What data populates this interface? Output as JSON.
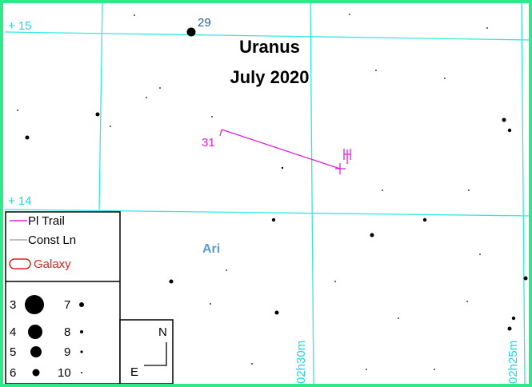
{
  "labels": {
    "dec_15": "+ 15",
    "dec_14": "+ 14",
    "ra_1": "02h30m",
    "ra_2": "02h25m",
    "constellation": "Ari"
  },
  "title": {
    "line1": "Uranus",
    "line2": "July 2020"
  },
  "trail": {
    "start_label": "31",
    "star_label": "29"
  },
  "legend": {
    "items": [
      "Pl Trail",
      "Const Ln",
      "Galaxy"
    ],
    "magnitudes": [
      "3",
      "4",
      "5",
      "6",
      "7",
      "8",
      "9",
      "10"
    ]
  },
  "compass": {
    "north": "N",
    "east": "E"
  }
}
